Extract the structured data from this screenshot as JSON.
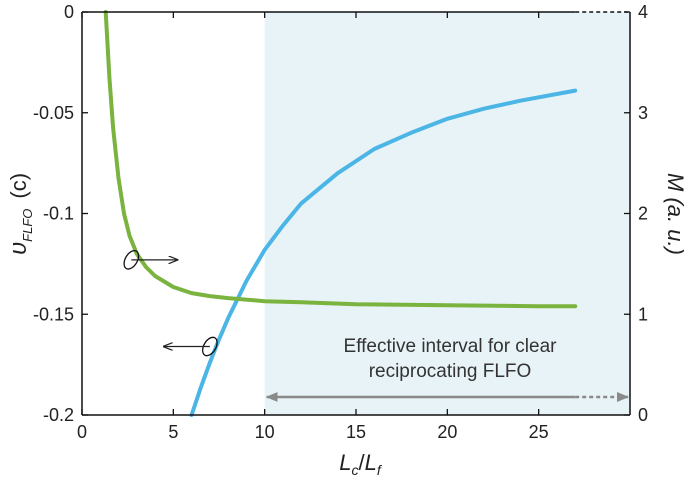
{
  "chart_data": {
    "type": "line",
    "x_label": {
      "base": "L",
      "sub1": "c",
      "slash": "/",
      "base2": "L",
      "sub2": "f"
    },
    "y_left_label": {
      "base": "υ",
      "sub": "FLFO",
      "unit": "(c)"
    },
    "y_right_label": "M (a. u.)",
    "x_range": [
      0,
      30
    ],
    "y_left_range": [
      -0.2,
      0
    ],
    "y_right_range": [
      0,
      4
    ],
    "x_ticks": [
      0,
      5,
      10,
      15,
      20,
      25
    ],
    "x_tick_labels": [
      "0",
      "5",
      "10",
      "15",
      "20",
      "25"
    ],
    "y_left_ticks": [
      0,
      -0.05,
      -0.1,
      -0.15,
      -0.2
    ],
    "y_left_tick_labels": [
      "0",
      "-0.05",
      "-0.1",
      "-0.15",
      "-0.2"
    ],
    "y_right_ticks": [
      0,
      1,
      2,
      3,
      4
    ],
    "y_right_tick_labels": [
      "0",
      "1",
      "2",
      "3",
      "4"
    ],
    "grid": false,
    "series": [
      {
        "axis": "left",
        "color": "#4bb6e6",
        "x": [
          6.0,
          6.5,
          7.0,
          7.5,
          8.0,
          9.0,
          10.0,
          11.0,
          12.0,
          14.0,
          16.0,
          18.0,
          20.0,
          22.0,
          24.0,
          27.0
        ],
        "y": [
          -0.2,
          -0.1865,
          -0.174,
          -0.1625,
          -0.152,
          -0.1335,
          -0.118,
          -0.106,
          -0.095,
          -0.08,
          -0.068,
          -0.06,
          -0.053,
          -0.048,
          -0.044,
          -0.039
        ]
      },
      {
        "axis": "right",
        "color": "#7ab33e",
        "x": [
          1.3,
          1.5,
          1.7,
          2.0,
          2.3,
          2.6,
          3.0,
          3.5,
          4.0,
          5.0,
          6.0,
          7.0,
          8.0,
          10.0,
          12.0,
          15.0,
          20.0,
          25.0,
          27.0
        ],
        "y": [
          4.0,
          3.35,
          2.85,
          2.35,
          2.0,
          1.78,
          1.6,
          1.47,
          1.38,
          1.27,
          1.21,
          1.18,
          1.16,
          1.13,
          1.12,
          1.1,
          1.09,
          1.08,
          1.08
        ]
      }
    ],
    "shaded_interval": {
      "x_start": 10,
      "x_end": 30,
      "color": "#e8f3f7"
    },
    "annotation": {
      "text_line1": "Effective interval for clear",
      "text_line2": "reciprocating FLFO",
      "arrow_color": "#8a8a8a"
    },
    "axis_markers": [
      {
        "target": "right",
        "x": 2.7,
        "y_left": -0.123
      },
      {
        "target": "left",
        "x": 7.0,
        "y_left": -0.166
      }
    ]
  }
}
